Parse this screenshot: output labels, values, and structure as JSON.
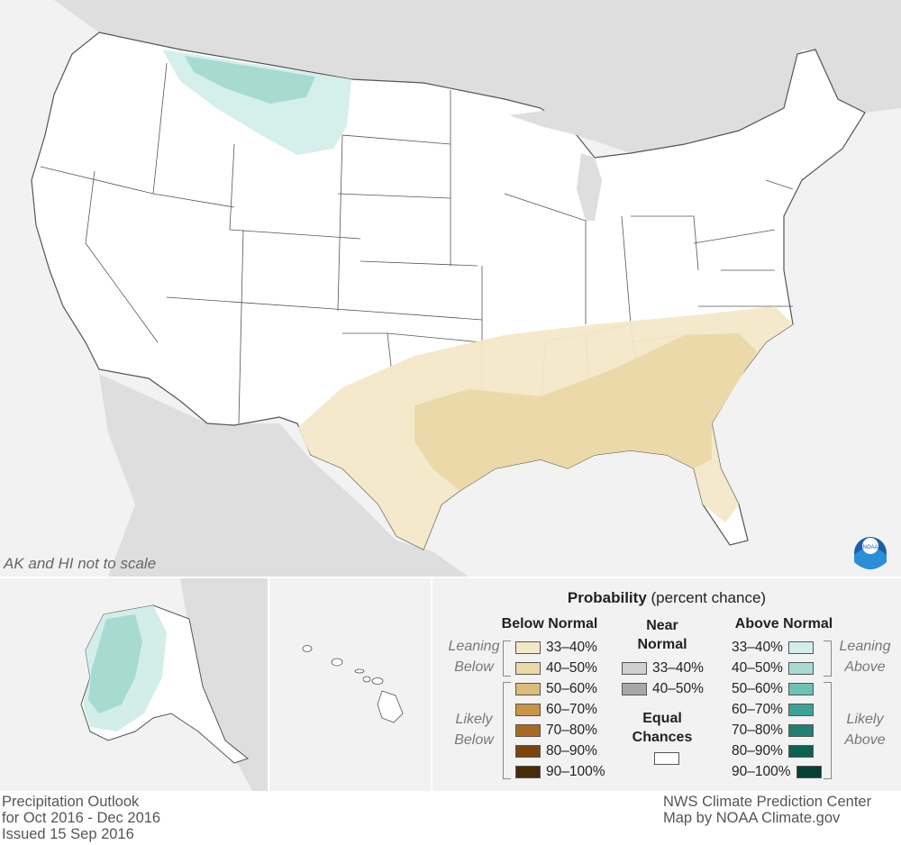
{
  "map": {
    "scale_note": "AK and HI not to scale",
    "logo_label": "NOAA"
  },
  "legend": {
    "title_bold": "Probability",
    "title_rest": " (percent chance)",
    "below": {
      "heading": "Below Normal",
      "leaning_label": [
        "Leaning",
        "Below"
      ],
      "likely_label": [
        "Likely",
        "Below"
      ],
      "items": [
        {
          "range": "33–40%",
          "color": "#f4e8c8"
        },
        {
          "range": "40–50%",
          "color": "#ecd9a9"
        },
        {
          "range": "50–60%",
          "color": "#dcbc7a"
        },
        {
          "range": "60–70%",
          "color": "#c99448"
        },
        {
          "range": "70–80%",
          "color": "#a86a22"
        },
        {
          "range": "80–90%",
          "color": "#7a4510"
        },
        {
          "range": "90–100%",
          "color": "#4a2a08"
        }
      ]
    },
    "near": {
      "heading": [
        "Near",
        "Normal"
      ],
      "items": [
        {
          "range": "33–40%",
          "color": "#d0d0d0"
        },
        {
          "range": "40–50%",
          "color": "#a8a8a8"
        }
      ],
      "equal_heading": [
        "Equal",
        "Chances"
      ],
      "equal_color": "#ffffff"
    },
    "above": {
      "heading": "Above Normal",
      "leaning_label": [
        "Leaning",
        "Above"
      ],
      "likely_label": [
        "Likely",
        "Above"
      ],
      "items": [
        {
          "range": "33–40%",
          "color": "#d3eee9"
        },
        {
          "range": "40–50%",
          "color": "#a7dbd2"
        },
        {
          "range": "50–60%",
          "color": "#6cc2b5"
        },
        {
          "range": "60–70%",
          "color": "#3aa394"
        },
        {
          "range": "70–80%",
          "color": "#1f8173"
        },
        {
          "range": "80–90%",
          "color": "#0e6052"
        },
        {
          "range": "90–100%",
          "color": "#063f35"
        }
      ]
    }
  },
  "footer": {
    "left": [
      "Precipitation Outlook",
      "for Oct 2016 - Dec 2016",
      "Issued 15 Sep 2016"
    ],
    "right": [
      "NWS Climate Prediction Center",
      "Map by NOAA Climate.gov"
    ]
  },
  "colors": {
    "background": "#f2f2f2",
    "land_other": "#dedede",
    "state_fill": "#ffffff",
    "state_line": "#555555"
  }
}
